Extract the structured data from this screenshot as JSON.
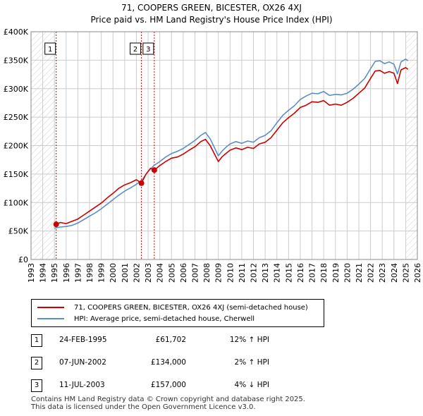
{
  "header": {
    "title": "71, COOPERS GREEN, BICESTER, OX26 4XJ",
    "subtitle": "Price paid vs. HM Land Registry's House Price Index (HPI)"
  },
  "legend": {
    "series_property": "71, COOPERS GREEN, BICESTER, OX26 4XJ (semi-detached house)",
    "series_hpi": "HPI: Average price, semi-detached house, Cherwell"
  },
  "transactions": [
    {
      "num": "1",
      "date": "24-FEB-1995",
      "price": "£61,702",
      "hpi": "12% ↑ HPI"
    },
    {
      "num": "2",
      "date": "07-JUN-2002",
      "price": "£134,000",
      "hpi": "2% ↑ HPI"
    },
    {
      "num": "3",
      "date": "11-JUL-2003",
      "price": "£157,000",
      "hpi": "4% ↓ HPI"
    }
  ],
  "footer": {
    "line1": "Contains HM Land Registry data © Crown copyright and database right 2025.",
    "line2": "This data is licensed under the Open Government Licence v3.0."
  },
  "colors": {
    "property": "#cc0000",
    "hpi": "#5b8ec6",
    "grid": "#cccccc",
    "marker_line": "#cc0000"
  },
  "chart_data": {
    "type": "line",
    "title": "71, COOPERS GREEN, BICESTER, OX26 4XJ",
    "subtitle": "Price paid vs. HM Land Registry's House Price Index (HPI)",
    "xlim": [
      1993,
      2026
    ],
    "ylim": [
      0,
      400000
    ],
    "x_ticks": [
      1993,
      1994,
      1995,
      1996,
      1997,
      1998,
      1999,
      2000,
      2001,
      2002,
      2003,
      2004,
      2005,
      2006,
      2007,
      2008,
      2009,
      2010,
      2011,
      2012,
      2013,
      2014,
      2015,
      2016,
      2017,
      2018,
      2019,
      2020,
      2021,
      2022,
      2023,
      2024,
      2025,
      2026
    ],
    "y_ticks": [
      0,
      50000,
      100000,
      150000,
      200000,
      250000,
      300000,
      350000,
      400000
    ],
    "y_tick_labels": [
      "£0",
      "£50K",
      "£100K",
      "£150K",
      "£200K",
      "£250K",
      "£300K",
      "£350K",
      "£400K"
    ],
    "grid": true,
    "hatched_ranges": [
      [
        1993,
        1995.15
      ],
      [
        2025.0,
        2026
      ]
    ],
    "markers": [
      {
        "label": "1",
        "x": 1995.15,
        "y": 61702
      },
      {
        "label": "2",
        "x": 2002.43,
        "y": 134000
      },
      {
        "label": "3",
        "x": 2003.53,
        "y": 157000
      }
    ],
    "series": [
      {
        "name": "71, COOPERS GREEN, BICESTER, OX26 4XJ (semi-detached house)",
        "x": [
          1995.15,
          1995.5,
          1996,
          1996.5,
          1997,
          1997.5,
          1998,
          1998.5,
          1999,
          1999.5,
          2000,
          2000.5,
          2001,
          2001.5,
          2002,
          2002.43,
          2002.8,
          2003.2,
          2003.53,
          2004,
          2004.5,
          2005,
          2005.5,
          2006,
          2006.5,
          2007,
          2007.5,
          2007.9,
          2008.3,
          2008.7,
          2009,
          2009.3,
          2009.7,
          2010,
          2010.5,
          2011,
          2011.5,
          2012,
          2012.5,
          2013,
          2013.5,
          2014,
          2014.5,
          2015,
          2015.5,
          2016,
          2016.5,
          2017,
          2017.5,
          2018,
          2018.5,
          2019,
          2019.5,
          2020,
          2020.5,
          2021,
          2021.5,
          2022,
          2022.4,
          2022.8,
          2023.2,
          2023.6,
          2024,
          2024.3,
          2024.6,
          2025,
          2025.2
        ],
        "values": [
          61702,
          65000,
          63000,
          67000,
          71000,
          78000,
          85000,
          92000,
          99000,
          108000,
          116000,
          125000,
          131000,
          135000,
          140000,
          134000,
          149000,
          160000,
          157000,
          165000,
          172000,
          178000,
          180000,
          185000,
          192000,
          198000,
          207000,
          211000,
          200000,
          184000,
          172000,
          180000,
          187000,
          192000,
          196000,
          193000,
          197000,
          195000,
          203000,
          206000,
          214000,
          227000,
          240000,
          249000,
          257000,
          267000,
          271000,
          277000,
          276000,
          279000,
          271000,
          273000,
          271000,
          276000,
          283000,
          292000,
          301000,
          318000,
          331000,
          332000,
          327000,
          330000,
          327000,
          309000,
          333000,
          337000,
          334000
        ]
      },
      {
        "name": "HPI: Average price, semi-detached house, Cherwell",
        "x": [
          1995,
          1995.5,
          1996,
          1996.5,
          1997,
          1997.5,
          1998,
          1998.5,
          1999,
          1999.5,
          2000,
          2000.5,
          2001,
          2001.5,
          2002,
          2002.5,
          2003,
          2003.5,
          2004,
          2004.5,
          2005,
          2005.5,
          2006,
          2006.5,
          2007,
          2007.5,
          2007.9,
          2008.3,
          2008.7,
          2009,
          2009.3,
          2009.7,
          2010,
          2010.5,
          2011,
          2011.5,
          2012,
          2012.5,
          2013,
          2013.5,
          2014,
          2014.5,
          2015,
          2015.5,
          2016,
          2016.5,
          2017,
          2017.5,
          2018,
          2018.5,
          2019,
          2019.5,
          2020,
          2020.5,
          2021,
          2021.5,
          2022,
          2022.4,
          2022.8,
          2023.2,
          2023.6,
          2024,
          2024.3,
          2024.6,
          2025,
          2025.2
        ],
        "values": [
          55000,
          57000,
          58000,
          60000,
          64000,
          70000,
          76000,
          82000,
          89000,
          97000,
          105000,
          113000,
          120000,
          126000,
          132000,
          140000,
          155000,
          165000,
          172000,
          180000,
          186000,
          190000,
          195000,
          202000,
          209000,
          218000,
          223000,
          212000,
          195000,
          182000,
          190000,
          198000,
          203000,
          207000,
          204000,
          208000,
          206000,
          214000,
          218000,
          226000,
          240000,
          253000,
          262000,
          270000,
          281000,
          287000,
          292000,
          291000,
          295000,
          288000,
          290000,
          289000,
          292000,
          299000,
          308000,
          318000,
          335000,
          348000,
          349000,
          344000,
          347000,
          343000,
          326000,
          347000,
          352000,
          349000
        ]
      }
    ]
  }
}
